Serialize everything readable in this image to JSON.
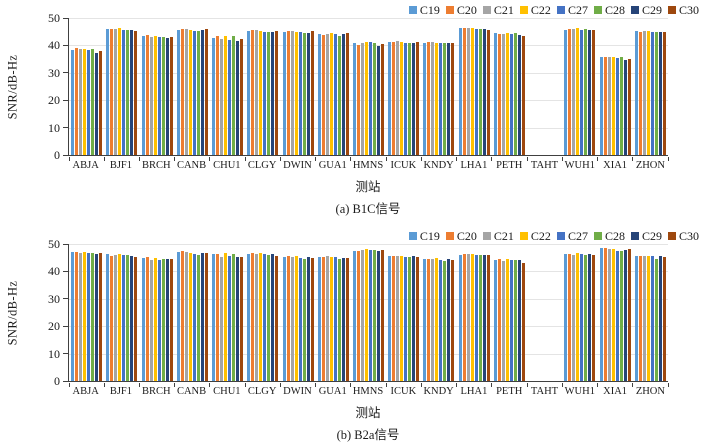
{
  "chart_data": [
    {
      "type": "bar",
      "title": "(a) B1C信号",
      "xlabel": "测站",
      "ylabel": "SNR/dB-Hz",
      "ylim": [
        0,
        50
      ],
      "yticks": [
        0,
        10,
        20,
        30,
        40,
        50
      ],
      "grid": true,
      "legend_position": "top-right",
      "categories": [
        "ABJA",
        "BJF1",
        "BRCH",
        "CANB",
        "CHU1",
        "CLGY",
        "DWIN",
        "GUA1",
        "HMNS",
        "ICUK",
        "KNDY",
        "LHA1",
        "PETH",
        "TAHT",
        "WUH1",
        "XIA1",
        "ZHON"
      ],
      "series": [
        {
          "name": "C19",
          "color": "#5B9BD5",
          "values": [
            38.4,
            45.9,
            43.5,
            45.8,
            42.8,
            45.2,
            44.8,
            44.3,
            40.8,
            41.2,
            41.0,
            46.2,
            44.5,
            null,
            45.7,
            35.7,
            45.2
          ]
        },
        {
          "name": "C20",
          "color": "#ED7D31",
          "values": [
            39.1,
            46.1,
            43.7,
            46.0,
            43.5,
            45.5,
            45.2,
            43.8,
            40.1,
            41.4,
            41.3,
            46.3,
            44.2,
            null,
            45.9,
            35.6,
            45.0
          ]
        },
        {
          "name": "C21",
          "color": "#A5A5A5",
          "values": [
            38.6,
            45.9,
            43.1,
            46.1,
            42.2,
            45.5,
            45.3,
            44.3,
            41.0,
            41.5,
            41.2,
            46.4,
            44.3,
            null,
            46.0,
            35.6,
            45.3
          ]
        },
        {
          "name": "C22",
          "color": "#FFC000",
          "values": [
            38.8,
            46.2,
            43.5,
            45.7,
            43.6,
            45.3,
            45.0,
            44.6,
            41.3,
            41.2,
            41.0,
            46.3,
            44.6,
            null,
            46.2,
            35.8,
            45.1
          ]
        },
        {
          "name": "C27",
          "color": "#4472C4",
          "values": [
            38.2,
            45.8,
            42.9,
            45.4,
            41.9,
            45.0,
            44.8,
            44.0,
            41.1,
            40.9,
            40.8,
            46.0,
            44.2,
            null,
            45.8,
            35.4,
            44.9
          ]
        },
        {
          "name": "C28",
          "color": "#70AD47",
          "values": [
            38.8,
            45.5,
            43.0,
            45.4,
            43.4,
            44.8,
            44.5,
            43.6,
            41.0,
            41.0,
            40.9,
            45.9,
            44.4,
            null,
            45.9,
            35.9,
            45.0
          ]
        },
        {
          "name": "C29",
          "color": "#264478",
          "values": [
            37.4,
            45.6,
            42.8,
            45.5,
            41.7,
            44.9,
            44.7,
            44.0,
            39.9,
            41.0,
            40.8,
            46.1,
            43.9,
            null,
            45.7,
            34.6,
            44.8
          ]
        },
        {
          "name": "C30",
          "color": "#9E480E",
          "values": [
            38.0,
            45.2,
            42.9,
            45.9,
            42.4,
            45.2,
            45.1,
            44.4,
            40.5,
            41.1,
            41.0,
            45.8,
            43.6,
            null,
            45.6,
            35.2,
            45.0
          ]
        }
      ]
    },
    {
      "type": "bar",
      "title": "(b) B2a信号",
      "xlabel": "测站",
      "ylabel": "SNR/dB-Hz",
      "ylim": [
        0,
        50
      ],
      "yticks": [
        0,
        10,
        20,
        30,
        40,
        50
      ],
      "grid": true,
      "legend_position": "top-right",
      "categories": [
        "ABJA",
        "BJF1",
        "BRCH",
        "CANB",
        "CHU1",
        "CLGY",
        "DWIN",
        "GUA1",
        "HMNS",
        "ICUK",
        "KNDY",
        "LHA1",
        "PETH",
        "TAHT",
        "WUH1",
        "XIA1",
        "ZHON"
      ],
      "series": [
        {
          "name": "C19",
          "color": "#5B9BD5",
          "values": [
            47.0,
            46.4,
            44.9,
            47.0,
            46.4,
            46.4,
            45.3,
            45.4,
            47.6,
            45.7,
            44.5,
            46.1,
            44.3,
            null,
            46.3,
            48.4,
            45.7
          ]
        },
        {
          "name": "C20",
          "color": "#ED7D31",
          "values": [
            47.0,
            45.8,
            45.2,
            47.3,
            46.5,
            46.6,
            45.5,
            45.2,
            47.5,
            45.8,
            44.7,
            46.2,
            44.5,
            null,
            46.2,
            48.5,
            45.6
          ]
        },
        {
          "name": "C21",
          "color": "#A5A5A5",
          "values": [
            46.9,
            46.1,
            44.3,
            47.1,
            45.1,
            46.5,
            45.4,
            45.6,
            47.9,
            45.6,
            44.4,
            46.2,
            43.9,
            null,
            46.0,
            48.1,
            45.7
          ]
        },
        {
          "name": "C22",
          "color": "#FFC000",
          "values": [
            47.0,
            46.4,
            44.8,
            46.6,
            46.7,
            46.6,
            45.6,
            45.3,
            48.2,
            45.5,
            44.9,
            46.2,
            44.6,
            null,
            46.6,
            48.2,
            45.8
          ]
        },
        {
          "name": "C27",
          "color": "#4472C4",
          "values": [
            46.6,
            46.0,
            44.3,
            46.3,
            45.6,
            46.2,
            44.9,
            45.2,
            47.9,
            45.3,
            44.2,
            46.0,
            44.3,
            null,
            46.2,
            47.6,
            45.5
          ]
        },
        {
          "name": "C28",
          "color": "#70AD47",
          "values": [
            46.9,
            45.9,
            44.4,
            45.9,
            46.5,
            46.0,
            44.6,
            44.6,
            47.7,
            45.3,
            43.8,
            46.0,
            44.2,
            null,
            45.9,
            47.3,
            44.7
          ]
        },
        {
          "name": "C29",
          "color": "#264478",
          "values": [
            46.5,
            45.5,
            44.6,
            46.9,
            45.2,
            46.3,
            45.2,
            45.0,
            47.4,
            45.6,
            44.5,
            46.1,
            44.0,
            null,
            46.2,
            47.7,
            45.5
          ]
        },
        {
          "name": "C30",
          "color": "#9E480E",
          "values": [
            46.7,
            45.2,
            44.6,
            46.7,
            45.3,
            45.8,
            45.0,
            44.8,
            47.8,
            45.4,
            44.3,
            45.9,
            43.2,
            null,
            46.1,
            48.0,
            45.3
          ]
        }
      ]
    }
  ]
}
